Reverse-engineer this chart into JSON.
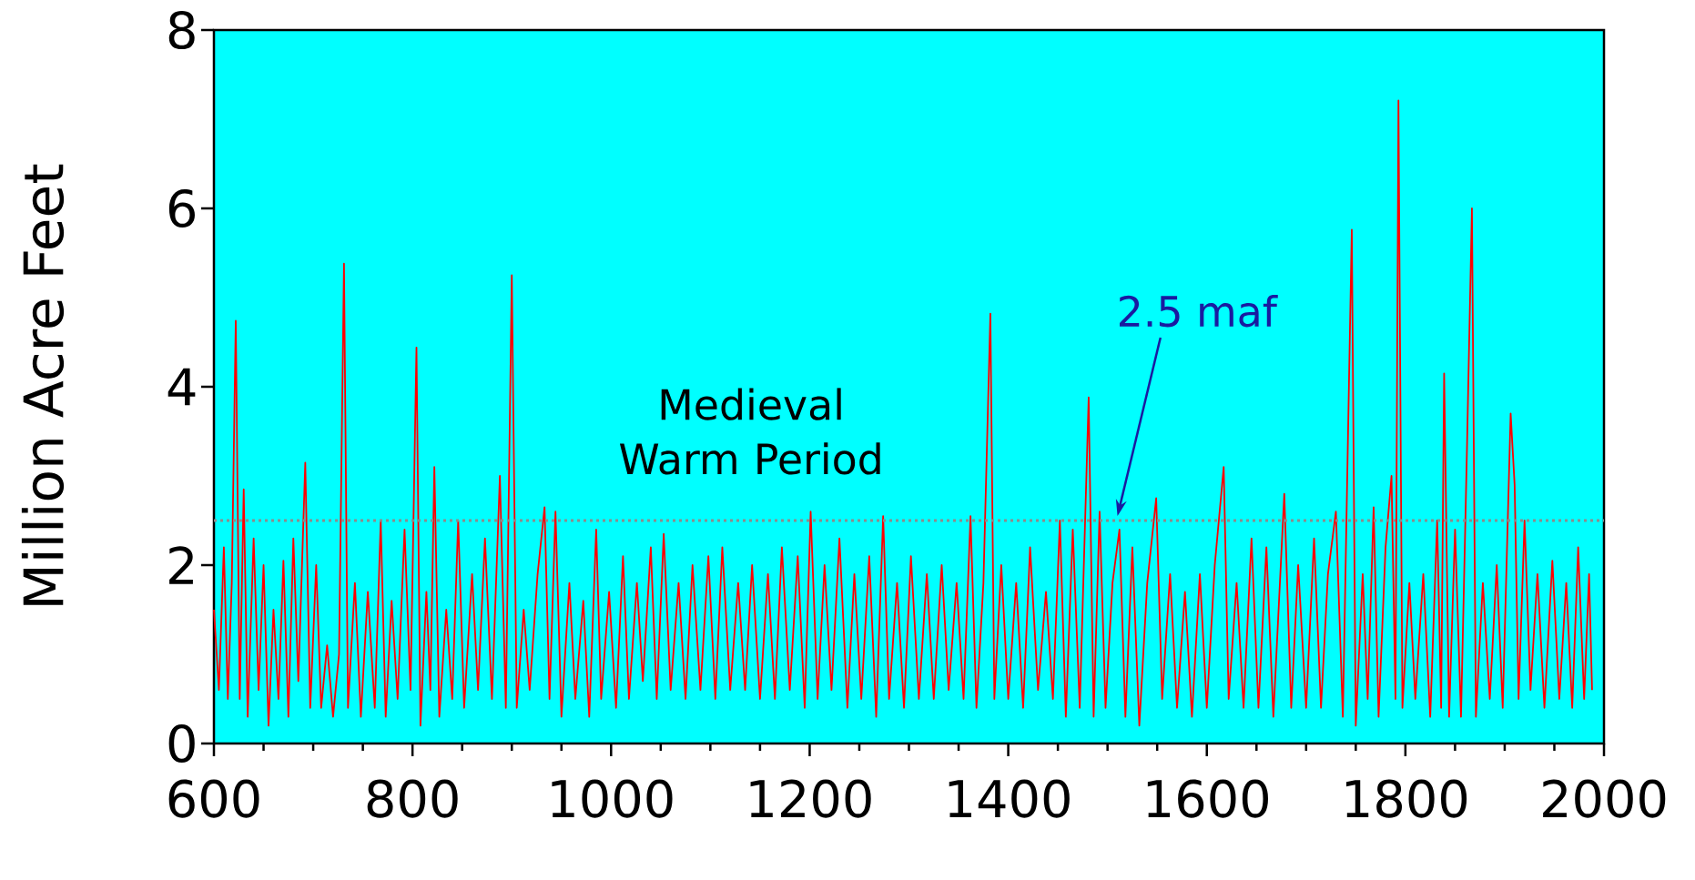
{
  "chart_data": {
    "type": "line",
    "ylabel": "Million Acre Feet",
    "xlim": [
      600,
      2000
    ],
    "ylim": [
      0,
      8
    ],
    "xticks": [
      600,
      800,
      1000,
      1200,
      1400,
      1600,
      1800,
      2000
    ],
    "yticks": [
      0,
      2,
      4,
      6,
      8
    ],
    "series": [
      {
        "color": "#ff0000",
        "x": [
          600,
          605,
          610,
          614,
          618,
          622,
          626,
          630,
          634,
          640,
          645,
          650,
          655,
          660,
          665,
          670,
          675,
          680,
          685,
          692,
          697,
          703,
          708,
          714,
          720,
          726,
          731,
          735,
          742,
          748,
          755,
          762,
          768,
          773,
          779,
          785,
          792,
          798,
          804,
          808,
          814,
          818,
          822,
          827,
          834,
          840,
          846,
          852,
          860,
          866,
          873,
          880,
          888,
          894,
          900,
          905,
          912,
          918,
          926,
          933,
          938,
          944,
          950,
          958,
          964,
          972,
          978,
          985,
          990,
          998,
          1005,
          1012,
          1018,
          1026,
          1032,
          1040,
          1046,
          1053,
          1060,
          1068,
          1075,
          1082,
          1090,
          1098,
          1105,
          1112,
          1120,
          1128,
          1135,
          1142,
          1150,
          1158,
          1165,
          1172,
          1180,
          1188,
          1195,
          1201,
          1208,
          1215,
          1222,
          1230,
          1238,
          1245,
          1252,
          1260,
          1267,
          1274,
          1280,
          1288,
          1295,
          1302,
          1310,
          1318,
          1325,
          1333,
          1340,
          1348,
          1355,
          1362,
          1368,
          1375,
          1382,
          1386,
          1393,
          1400,
          1408,
          1415,
          1422,
          1430,
          1438,
          1445,
          1452,
          1458,
          1465,
          1472,
          1481,
          1486,
          1492,
          1498,
          1505,
          1512,
          1518,
          1525,
          1532,
          1540,
          1549,
          1555,
          1563,
          1570,
          1578,
          1585,
          1593,
          1600,
          1608,
          1617,
          1622,
          1630,
          1637,
          1645,
          1652,
          1660,
          1667,
          1678,
          1685,
          1692,
          1700,
          1708,
          1715,
          1722,
          1730,
          1737,
          1746,
          1750,
          1757,
          1762,
          1768,
          1773,
          1780,
          1786,
          1790,
          1793,
          1797,
          1804,
          1810,
          1818,
          1825,
          1832,
          1836,
          1839,
          1844,
          1850,
          1856,
          1862,
          1867,
          1871,
          1878,
          1885,
          1892,
          1898,
          1906,
          1910,
          1914,
          1920,
          1926,
          1933,
          1940,
          1948,
          1955,
          1962,
          1968,
          1974,
          1980,
          1985,
          1988
        ],
        "values": [
          1.5,
          0.6,
          2.2,
          0.5,
          1.8,
          4.74,
          0.5,
          2.85,
          0.3,
          2.3,
          0.6,
          2.0,
          0.2,
          1.5,
          0.5,
          2.05,
          0.3,
          2.3,
          0.7,
          3.15,
          0.4,
          2.0,
          0.4,
          1.1,
          0.3,
          1.0,
          5.38,
          0.4,
          1.8,
          0.3,
          1.7,
          0.4,
          2.5,
          0.3,
          1.6,
          0.5,
          2.4,
          0.6,
          4.44,
          0.2,
          1.7,
          0.6,
          3.1,
          0.3,
          1.5,
          0.5,
          2.5,
          0.4,
          1.9,
          0.6,
          2.3,
          0.5,
          3.0,
          0.4,
          5.25,
          0.4,
          1.5,
          0.6,
          1.9,
          2.65,
          0.5,
          2.6,
          0.3,
          1.8,
          0.5,
          1.6,
          0.3,
          2.4,
          0.5,
          1.7,
          0.4,
          2.1,
          0.5,
          1.8,
          0.7,
          2.2,
          0.5,
          2.35,
          0.6,
          1.8,
          0.5,
          2.0,
          0.6,
          2.1,
          0.5,
          2.2,
          0.6,
          1.8,
          0.6,
          2.0,
          0.5,
          1.9,
          0.5,
          2.2,
          0.6,
          2.1,
          0.4,
          2.6,
          0.5,
          2.0,
          0.6,
          2.3,
          0.4,
          1.9,
          0.5,
          2.1,
          0.3,
          2.55,
          0.5,
          1.8,
          0.4,
          2.1,
          0.5,
          1.9,
          0.5,
          2.0,
          0.6,
          1.8,
          0.5,
          2.55,
          0.4,
          1.8,
          4.82,
          0.5,
          2.0,
          0.5,
          1.8,
          0.4,
          2.2,
          0.6,
          1.7,
          0.5,
          2.5,
          0.3,
          2.4,
          0.4,
          3.88,
          0.3,
          2.6,
          0.4,
          1.8,
          2.4,
          0.3,
          2.2,
          0.2,
          1.8,
          2.75,
          0.5,
          1.9,
          0.4,
          1.7,
          0.3,
          1.9,
          0.4,
          2.0,
          3.1,
          0.5,
          1.8,
          0.4,
          2.3,
          0.4,
          2.2,
          0.3,
          2.8,
          0.4,
          2.0,
          0.4,
          2.3,
          0.4,
          1.9,
          2.6,
          0.3,
          5.76,
          0.2,
          1.9,
          0.5,
          2.65,
          0.3,
          2.2,
          3.0,
          0.5,
          7.21,
          0.4,
          1.8,
          0.5,
          1.9,
          0.3,
          2.5,
          0.4,
          4.15,
          0.3,
          2.4,
          0.3,
          3.3,
          6.0,
          0.3,
          1.8,
          0.5,
          2.0,
          0.4,
          3.7,
          2.9,
          0.5,
          2.5,
          0.6,
          1.9,
          0.4,
          2.05,
          0.5,
          1.8,
          0.4,
          2.2,
          0.5,
          1.9,
          0.6
        ]
      }
    ],
    "ref_lines": [
      {
        "axis": "y",
        "value": 2.5,
        "color": "#8c8c8c",
        "line_style": "dotted"
      }
    ],
    "annotations": [
      "2.5 maf",
      "Medieval Warm Period"
    ]
  }
}
